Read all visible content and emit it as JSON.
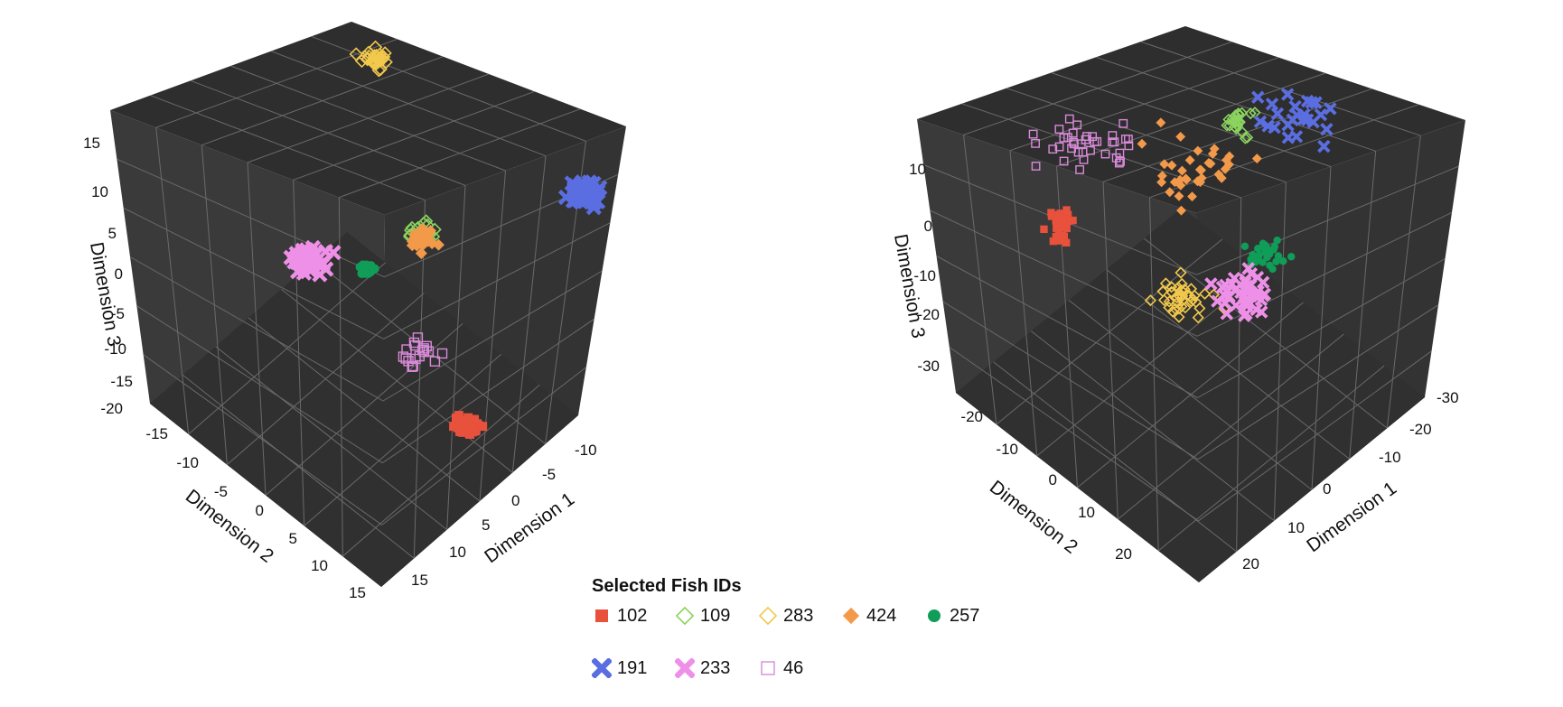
{
  "chart_data": [
    {
      "type": "scatter-3d",
      "axes": {
        "x": {
          "label": "Dimension 1",
          "ticks": [
            "-10",
            "-5",
            "0",
            "5",
            "10",
            "15"
          ]
        },
        "y": {
          "label": "Dimension 2",
          "ticks": [
            "-15",
            "-10",
            "-5",
            "0",
            "5",
            "10",
            "15"
          ]
        },
        "z": {
          "label": "Dimension 3",
          "ticks": [
            "-20",
            "-15",
            "-10",
            "-5",
            "0",
            "5",
            "10",
            "15"
          ]
        }
      },
      "background": "#333333",
      "grid": true,
      "series": [
        {
          "name": "102",
          "clusters": [
            {
              "center": [
                7,
                12,
                -15
              ],
              "spread": 0.7,
              "count": 40
            }
          ]
        },
        {
          "name": "109",
          "clusters": [
            {
              "center": [
                -3,
                -2,
                0
              ],
              "spread": 0.9,
              "count": 22
            }
          ]
        },
        {
          "name": "283",
          "clusters": [
            {
              "center": [
                -12,
                -15,
                13
              ],
              "spread": 1.0,
              "count": 30
            }
          ]
        },
        {
          "name": "424",
          "clusters": [
            {
              "center": [
                -3,
                -2,
                -1
              ],
              "spread": 0.9,
              "count": 30
            }
          ]
        },
        {
          "name": "257",
          "clusters": [
            {
              "center": [
                -1,
                -7,
                -6
              ],
              "spread": 0.5,
              "count": 25
            }
          ]
        },
        {
          "name": "191",
          "clusters": [
            {
              "center": [
                -7,
                15,
                10
              ],
              "spread": 1.0,
              "count": 45
            }
          ]
        },
        {
          "name": "233",
          "clusters": [
            {
              "center": [
                0,
                -13,
                -7
              ],
              "spread": 1.0,
              "count": 50
            }
          ]
        },
        {
          "name": "46",
          "clusters": [
            {
              "center": [
                11,
                11,
                -5
              ],
              "spread": 1.5,
              "count": 18
            }
          ]
        }
      ]
    },
    {
      "type": "scatter-3d",
      "axes": {
        "x": {
          "label": "Dimension 1",
          "ticks": [
            "-30",
            "-20",
            "-10",
            "0",
            "10",
            "20"
          ]
        },
        "y": {
          "label": "Dimension 2",
          "ticks": [
            "-20",
            "-10",
            "0",
            "10",
            "20"
          ]
        },
        "z": {
          "label": "Dimension 3",
          "ticks": [
            "-30",
            "-20",
            "-10",
            "0",
            "10"
          ]
        }
      },
      "background": "#333333",
      "grid": true,
      "series": [
        {
          "name": "102",
          "clusters": [
            {
              "center": [
                6,
                -22,
                -9
              ],
              "spread": 2.0,
              "count": 30
            }
          ]
        },
        {
          "name": "109",
          "clusters": [
            {
              "center": [
                -15,
                -2,
                13
              ],
              "spread": 2.2,
              "count": 22
            }
          ]
        },
        {
          "name": "283",
          "clusters": [
            {
              "center": [
                7,
                2,
                -14
              ],
              "spread": 3.0,
              "count": 38
            }
          ]
        },
        {
          "name": "424",
          "clusters": [
            {
              "center": [
                -8,
                -5,
                4
              ],
              "spread": 5.5,
              "count": 35
            }
          ]
        },
        {
          "name": "257",
          "clusters": [
            {
              "center": [
                -2,
                13,
                -5
              ],
              "spread": 2.2,
              "count": 28
            }
          ]
        },
        {
          "name": "191",
          "clusters": [
            {
              "center": [
                -20,
                5,
                15
              ],
              "spread": 3.5,
              "count": 24
            }
          ]
        },
        {
          "name": "233",
          "clusters": [
            {
              "center": [
                2,
                11,
                -12
              ],
              "spread": 3.0,
              "count": 40
            }
          ]
        },
        {
          "name": "46",
          "clusters": [
            {
              "center": [
                -4,
                -24,
                4
              ],
              "spread": 5.0,
              "count": 38
            }
          ]
        }
      ]
    }
  ],
  "legend": {
    "title": "Selected Fish IDs",
    "items": [
      {
        "label": "102",
        "color": "#e8513c",
        "marker": "square-filled"
      },
      {
        "label": "109",
        "color": "#8bd45f",
        "marker": "diamond-open"
      },
      {
        "label": "283",
        "color": "#f2c94c",
        "marker": "diamond-open"
      },
      {
        "label": "424",
        "color": "#f2994a",
        "marker": "diamond-filled"
      },
      {
        "label": "257",
        "color": "#0f9d58",
        "marker": "circle-filled"
      },
      {
        "label": "191",
        "color": "#5b6ee1",
        "marker": "x"
      },
      {
        "label": "233",
        "color": "#ee90e8",
        "marker": "x"
      },
      {
        "label": "46",
        "color": "#d88ad8",
        "marker": "square-open"
      }
    ]
  }
}
